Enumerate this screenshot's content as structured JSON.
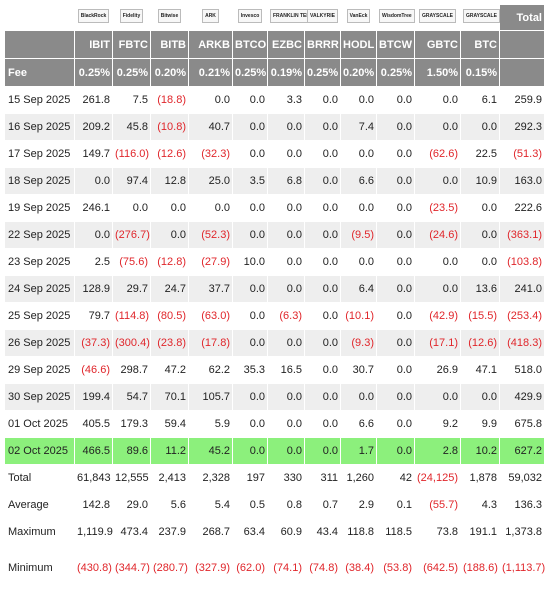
{
  "logos": [
    "BlackRock",
    "Fidelity",
    "Bitwise",
    "ARK",
    "Invesco",
    "FRANKLIN TEMPLETON",
    "VALKYRIE",
    "VanEck",
    "WisdomTree",
    "GRAYSCALE",
    "GRAYSCALE"
  ],
  "header": {
    "tickers": [
      "IBIT",
      "FBTC",
      "BITB",
      "ARKB",
      "BTCO",
      "EZBC",
      "BRRR",
      "HODL",
      "BTCW",
      "GBTC",
      "BTC"
    ],
    "total": "Total"
  },
  "fee": {
    "label": "Fee",
    "values": [
      "0.25%",
      "0.25%",
      "0.20%",
      "0.21%",
      "0.25%",
      "0.19%",
      "0.25%",
      "0.20%",
      "0.25%",
      "1.50%",
      "0.15%"
    ]
  },
  "rows": [
    {
      "date": "15 Sep 2025",
      "values": [
        "261.8",
        "7.5",
        "(18.8)",
        "0.0",
        "0.0",
        "3.3",
        "0.0",
        "0.0",
        "0.0",
        "0.0",
        "6.1",
        "259.9"
      ]
    },
    {
      "date": "16 Sep 2025",
      "values": [
        "209.2",
        "45.8",
        "(10.8)",
        "40.7",
        "0.0",
        "0.0",
        "0.0",
        "7.4",
        "0.0",
        "0.0",
        "0.0",
        "292.3"
      ]
    },
    {
      "date": "17 Sep 2025",
      "values": [
        "149.7",
        "(116.0)",
        "(12.6)",
        "(32.3)",
        "0.0",
        "0.0",
        "0.0",
        "0.0",
        "0.0",
        "(62.6)",
        "22.5",
        "(51.3)"
      ]
    },
    {
      "date": "18 Sep 2025",
      "values": [
        "0.0",
        "97.4",
        "12.8",
        "25.0",
        "3.5",
        "6.8",
        "0.0",
        "6.6",
        "0.0",
        "0.0",
        "10.9",
        "163.0"
      ]
    },
    {
      "date": "19 Sep 2025",
      "values": [
        "246.1",
        "0.0",
        "0.0",
        "0.0",
        "0.0",
        "0.0",
        "0.0",
        "0.0",
        "0.0",
        "(23.5)",
        "0.0",
        "222.6"
      ]
    },
    {
      "date": "22 Sep 2025",
      "values": [
        "0.0",
        "(276.7)",
        "0.0",
        "(52.3)",
        "0.0",
        "0.0",
        "0.0",
        "(9.5)",
        "0.0",
        "(24.6)",
        "0.0",
        "(363.1)"
      ]
    },
    {
      "date": "23 Sep 2025",
      "values": [
        "2.5",
        "(75.6)",
        "(12.8)",
        "(27.9)",
        "10.0",
        "0.0",
        "0.0",
        "0.0",
        "0.0",
        "0.0",
        "0.0",
        "(103.8)"
      ]
    },
    {
      "date": "24 Sep 2025",
      "values": [
        "128.9",
        "29.7",
        "24.7",
        "37.7",
        "0.0",
        "0.0",
        "0.0",
        "6.4",
        "0.0",
        "0.0",
        "13.6",
        "241.0"
      ]
    },
    {
      "date": "25 Sep 2025",
      "values": [
        "79.7",
        "(114.8)",
        "(80.5)",
        "(63.0)",
        "0.0",
        "(6.3)",
        "0.0",
        "(10.1)",
        "0.0",
        "(42.9)",
        "(15.5)",
        "(253.4)"
      ]
    },
    {
      "date": "26 Sep 2025",
      "values": [
        "(37.3)",
        "(300.4)",
        "(23.8)",
        "(17.8)",
        "0.0",
        "0.0",
        "0.0",
        "(9.3)",
        "0.0",
        "(17.1)",
        "(12.6)",
        "(418.3)"
      ]
    },
    {
      "date": "29 Sep 2025",
      "values": [
        "(46.6)",
        "298.7",
        "47.2",
        "62.2",
        "35.3",
        "16.5",
        "0.0",
        "30.7",
        "0.0",
        "26.9",
        "47.1",
        "518.0"
      ]
    },
    {
      "date": "30 Sep 2025",
      "values": [
        "199.4",
        "54.7",
        "70.1",
        "105.7",
        "0.0",
        "0.0",
        "0.0",
        "0.0",
        "0.0",
        "0.0",
        "0.0",
        "429.9"
      ]
    },
    {
      "date": "01 Oct 2025",
      "values": [
        "405.5",
        "179.3",
        "59.4",
        "5.9",
        "0.0",
        "0.0",
        "0.0",
        "6.6",
        "0.0",
        "9.2",
        "9.9",
        "675.8"
      ]
    },
    {
      "date": "02 Oct 2025",
      "highlight": true,
      "values": [
        "466.5",
        "89.6",
        "11.2",
        "45.2",
        "0.0",
        "0.0",
        "0.0",
        "1.7",
        "0.0",
        "2.8",
        "10.2",
        "627.2"
      ]
    }
  ],
  "summary": [
    {
      "label": "Total",
      "values": [
        "61,843",
        "12,555",
        "2,413",
        "2,328",
        "197",
        "330",
        "311",
        "1,260",
        "42",
        "(24,125)",
        "1,878",
        "59,032"
      ]
    },
    {
      "label": "Average",
      "values": [
        "142.8",
        "29.0",
        "5.6",
        "5.4",
        "0.5",
        "0.8",
        "0.7",
        "2.9",
        "0.1",
        "(55.7)",
        "4.3",
        "136.3"
      ]
    },
    {
      "label": "Maximum",
      "values": [
        "1,119.9",
        "473.4",
        "237.9",
        "268.7",
        "63.4",
        "60.9",
        "43.4",
        "118.8",
        "118.5",
        "73.8",
        "191.1",
        "1,373.8"
      ]
    },
    {
      "label": "Minimum",
      "values": [
        "(430.8)",
        "(344.7)",
        "(280.7)",
        "(327.9)",
        "(62.0)",
        "(74.1)",
        "(74.8)",
        "(38.4)",
        "(53.8)",
        "(642.5)",
        "(188.6)",
        "(1,113.7)"
      ]
    }
  ]
}
